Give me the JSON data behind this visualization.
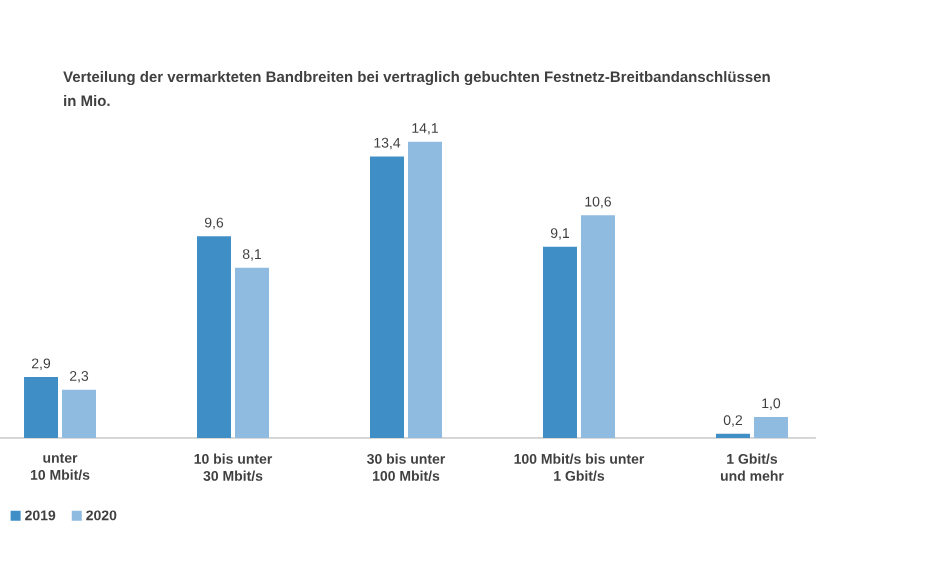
{
  "chart_data": {
    "type": "bar",
    "title": "Verteilung der vermarkteten Bandbreiten bei vertraglich gebuchten Festnetz-Breitbandanschlüssen",
    "subtitle": "in Mio.",
    "categories": [
      "unter\n10 Mbit/s",
      "10 bis unter\n30 Mbit/s",
      "30 bis unter\n100 Mbit/s",
      "100 Mbit/s bis unter\n1 Gbit/s",
      "1 Gbit/s\nund mehr"
    ],
    "series": [
      {
        "name": "2019",
        "color": "#3f8fc6",
        "values": [
          2.9,
          9.6,
          13.4,
          9.1,
          0.2
        ],
        "value_labels": [
          "2,9",
          "9,6",
          "13,4",
          "9,1",
          "0,2"
        ]
      },
      {
        "name": "2020",
        "color": "#8fbbe0",
        "values": [
          2.3,
          8.1,
          14.1,
          10.6,
          1.0
        ],
        "value_labels": [
          "2,3",
          "8,1",
          "14,1",
          "10,6",
          "1,0"
        ]
      }
    ],
    "legend": "bottom left"
  }
}
